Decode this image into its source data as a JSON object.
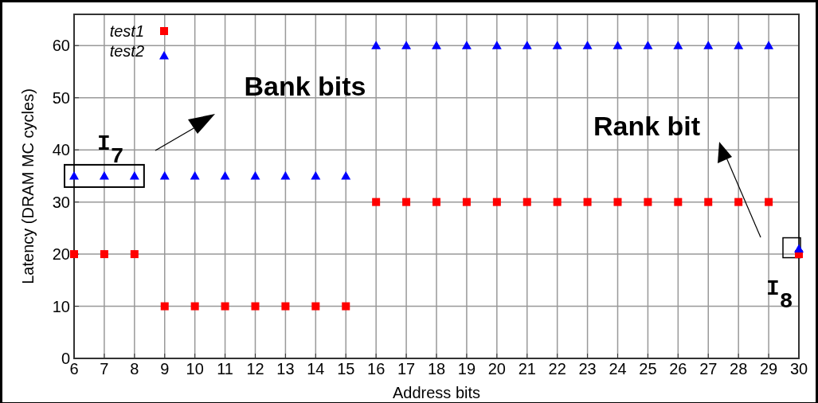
{
  "chart_data": {
    "type": "scatter",
    "xlabel": "Address bits",
    "ylabel": "Latency (DRAM MC cycles)",
    "x": [
      6,
      7,
      8,
      9,
      10,
      11,
      12,
      13,
      14,
      15,
      16,
      17,
      18,
      19,
      20,
      21,
      22,
      23,
      24,
      25,
      26,
      27,
      28,
      29,
      30
    ],
    "series": [
      {
        "name": "test1",
        "color": "#ff0000",
        "marker": "square",
        "values": [
          20,
          20,
          20,
          10,
          10,
          10,
          10,
          10,
          10,
          10,
          30,
          30,
          30,
          30,
          30,
          30,
          30,
          30,
          30,
          30,
          30,
          30,
          30,
          30,
          20
        ]
      },
      {
        "name": "test2",
        "color": "#0000ff",
        "marker": "triangle",
        "values": [
          35,
          35,
          35,
          35,
          35,
          35,
          35,
          35,
          35,
          35,
          60,
          60,
          60,
          60,
          60,
          60,
          60,
          60,
          60,
          60,
          60,
          60,
          60,
          60,
          21
        ]
      }
    ],
    "xlim": [
      6,
      30
    ],
    "xticks": [
      6,
      7,
      8,
      9,
      10,
      11,
      12,
      13,
      14,
      15,
      16,
      17,
      18,
      19,
      20,
      21,
      22,
      23,
      24,
      25,
      26,
      27,
      28,
      29,
      30
    ],
    "ylim": [
      0,
      66
    ],
    "yticks": [
      0,
      10,
      20,
      30,
      40,
      50,
      60
    ],
    "grid": true,
    "legend": "top left",
    "annotations": [
      "Bank bits",
      "Rank bit",
      "I$_{7}$",
      "I$_{8}$"
    ]
  }
}
